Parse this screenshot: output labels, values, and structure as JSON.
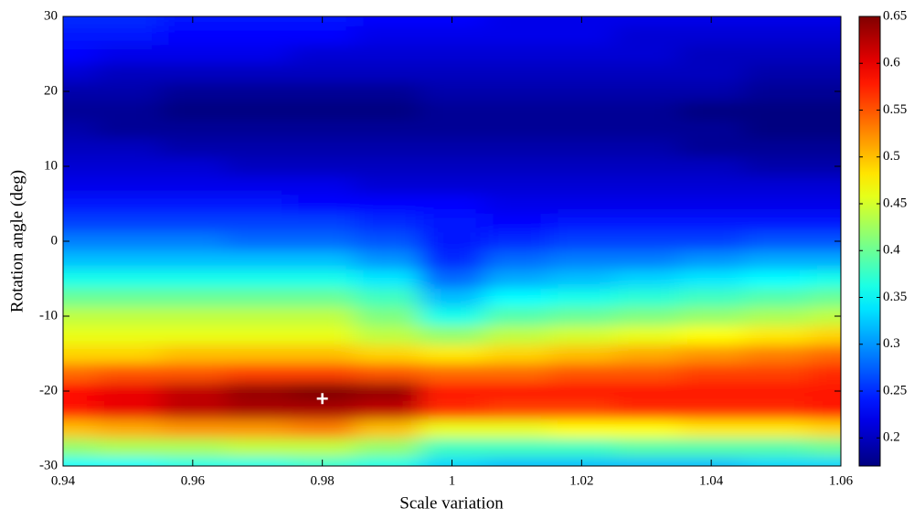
{
  "chart_data": {
    "type": "heatmap",
    "xlabel": "Scale variation",
    "ylabel": "Rotation angle (deg)",
    "colormap": "jet",
    "x": [
      0.94,
      0.95,
      0.96,
      0.97,
      0.98,
      0.99,
      1.0,
      1.01,
      1.02,
      1.03,
      1.04,
      1.05,
      1.06
    ],
    "y": [
      -30,
      -27.5,
      -25,
      -22.5,
      -20,
      -17.5,
      -15,
      -12.5,
      -10,
      -7.5,
      -5,
      -2.5,
      0,
      2.5,
      5,
      7.5,
      10,
      12.5,
      15,
      17.5,
      20,
      22.5,
      25,
      27.5,
      30
    ],
    "z": [
      [
        0.35,
        0.35,
        0.36,
        0.36,
        0.37,
        0.36,
        0.33,
        0.32,
        0.32,
        0.32,
        0.32,
        0.33,
        0.33
      ],
      [
        0.42,
        0.43,
        0.43,
        0.44,
        0.44,
        0.42,
        0.38,
        0.38,
        0.38,
        0.39,
        0.39,
        0.39,
        0.4
      ],
      [
        0.5,
        0.51,
        0.52,
        0.52,
        0.53,
        0.5,
        0.46,
        0.46,
        0.47,
        0.47,
        0.48,
        0.48,
        0.49
      ],
      [
        0.58,
        0.6,
        0.62,
        0.63,
        0.63,
        0.62,
        0.57,
        0.56,
        0.56,
        0.57,
        0.57,
        0.57,
        0.58
      ],
      [
        0.59,
        0.6,
        0.62,
        0.64,
        0.65,
        0.64,
        0.58,
        0.58,
        0.58,
        0.58,
        0.58,
        0.58,
        0.58
      ],
      [
        0.54,
        0.55,
        0.55,
        0.56,
        0.56,
        0.55,
        0.54,
        0.54,
        0.55,
        0.55,
        0.56,
        0.56,
        0.57
      ],
      [
        0.49,
        0.49,
        0.5,
        0.5,
        0.5,
        0.49,
        0.48,
        0.49,
        0.5,
        0.51,
        0.52,
        0.53,
        0.54
      ],
      [
        0.46,
        0.46,
        0.46,
        0.46,
        0.46,
        0.44,
        0.42,
        0.44,
        0.45,
        0.46,
        0.47,
        0.48,
        0.49
      ],
      [
        0.44,
        0.44,
        0.44,
        0.44,
        0.44,
        0.41,
        0.36,
        0.39,
        0.4,
        0.41,
        0.42,
        0.43,
        0.44
      ],
      [
        0.4,
        0.4,
        0.4,
        0.4,
        0.4,
        0.38,
        0.32,
        0.35,
        0.36,
        0.37,
        0.38,
        0.39,
        0.4
      ],
      [
        0.36,
        0.36,
        0.36,
        0.36,
        0.36,
        0.34,
        0.28,
        0.31,
        0.32,
        0.33,
        0.34,
        0.35,
        0.36
      ],
      [
        0.32,
        0.32,
        0.32,
        0.32,
        0.32,
        0.3,
        0.25,
        0.28,
        0.29,
        0.29,
        0.3,
        0.31,
        0.31
      ],
      [
        0.29,
        0.29,
        0.29,
        0.28,
        0.28,
        0.27,
        0.24,
        0.25,
        0.26,
        0.26,
        0.26,
        0.27,
        0.27
      ],
      [
        0.26,
        0.26,
        0.26,
        0.26,
        0.26,
        0.25,
        0.24,
        0.23,
        0.24,
        0.24,
        0.24,
        0.24,
        0.24
      ],
      [
        0.24,
        0.24,
        0.24,
        0.24,
        0.23,
        0.23,
        0.23,
        0.22,
        0.22,
        0.22,
        0.22,
        0.22,
        0.22
      ],
      [
        0.22,
        0.22,
        0.22,
        0.22,
        0.22,
        0.21,
        0.21,
        0.21,
        0.21,
        0.21,
        0.21,
        0.21,
        0.21
      ],
      [
        0.21,
        0.21,
        0.21,
        0.2,
        0.2,
        0.2,
        0.2,
        0.2,
        0.2,
        0.2,
        0.2,
        0.19,
        0.19
      ],
      [
        0.2,
        0.2,
        0.19,
        0.19,
        0.19,
        0.19,
        0.19,
        0.19,
        0.19,
        0.19,
        0.18,
        0.18,
        0.18
      ],
      [
        0.19,
        0.18,
        0.18,
        0.18,
        0.18,
        0.18,
        0.18,
        0.18,
        0.18,
        0.18,
        0.18,
        0.17,
        0.17
      ],
      [
        0.18,
        0.18,
        0.17,
        0.17,
        0.17,
        0.17,
        0.18,
        0.18,
        0.18,
        0.18,
        0.17,
        0.17,
        0.17
      ],
      [
        0.19,
        0.19,
        0.18,
        0.18,
        0.18,
        0.18,
        0.19,
        0.19,
        0.19,
        0.19,
        0.19,
        0.18,
        0.18
      ],
      [
        0.21,
        0.2,
        0.2,
        0.2,
        0.2,
        0.2,
        0.2,
        0.2,
        0.2,
        0.2,
        0.2,
        0.19,
        0.19
      ],
      [
        0.23,
        0.22,
        0.22,
        0.22,
        0.21,
        0.21,
        0.21,
        0.21,
        0.21,
        0.21,
        0.2,
        0.2,
        0.2
      ],
      [
        0.24,
        0.24,
        0.23,
        0.23,
        0.23,
        0.22,
        0.22,
        0.22,
        0.22,
        0.21,
        0.21,
        0.21,
        0.21
      ],
      [
        0.25,
        0.25,
        0.24,
        0.24,
        0.24,
        0.23,
        0.23,
        0.22,
        0.22,
        0.22,
        0.22,
        0.22,
        0.22
      ]
    ],
    "marker": {
      "x": 0.98,
      "y": -21
    },
    "xlim": [
      0.94,
      1.06
    ],
    "xticks": [
      0.94,
      0.96,
      0.98,
      1,
      1.02,
      1.04,
      1.06
    ],
    "ylim": [
      -30,
      30
    ],
    "yticks": [
      -30,
      -20,
      -10,
      0,
      10,
      20,
      30
    ],
    "clim": [
      0.17,
      0.65
    ],
    "cticks": [
      0.2,
      0.25,
      0.3,
      0.35,
      0.4,
      0.45,
      0.5,
      0.55,
      0.6,
      0.65
    ]
  }
}
